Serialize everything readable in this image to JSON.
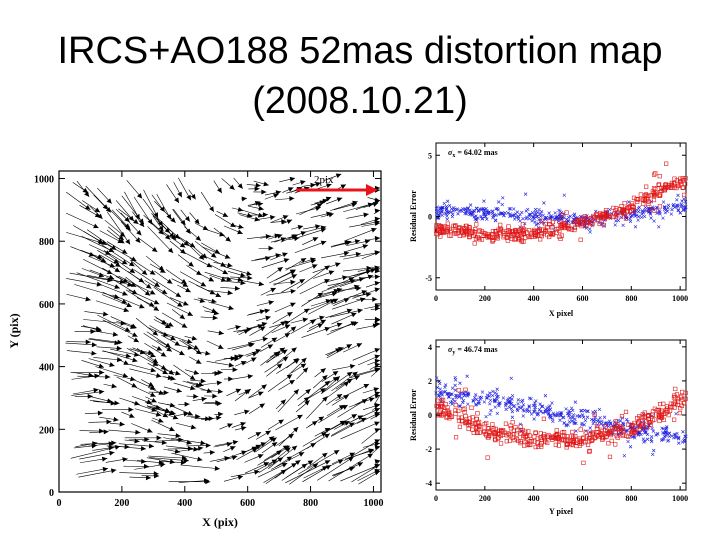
{
  "slide": {
    "title_line1": "IRCS+AO188 52mas distortion map",
    "title_line2": "(2008.10.21)"
  },
  "colors": {
    "arrow": "#000000",
    "scale_arrow": "#e8141c",
    "x_residual": "#2020e0",
    "y_residual": "#e01818"
  },
  "chart_data": [
    {
      "type": "quiver",
      "xlabel": "X (pix)",
      "ylabel": "Y (pix)",
      "xlim": [
        0,
        1024
      ],
      "ylim": [
        0,
        1024
      ],
      "xticks": [
        "0",
        "200",
        "400",
        "600",
        "800",
        "1000"
      ],
      "yticks": [
        "0",
        "200",
        "400",
        "600",
        "800",
        "1000"
      ],
      "scale_label": "2pix",
      "scale_length_pix": 2
    },
    {
      "type": "scatter",
      "annotation_symbol": "σ",
      "annotation_sub": "x",
      "annotation_value": " = 64.02 mas",
      "xlabel": "X pixel",
      "ylabel": "Residual Error",
      "xlim": [
        0,
        1024
      ],
      "ylim": [
        -6,
        6
      ],
      "xticks": [
        "0",
        "200",
        "400",
        "600",
        "800",
        "1000"
      ],
      "yticks": [
        "-5",
        "0",
        "5"
      ],
      "series": [
        {
          "marker": "x",
          "color": "#2020e0",
          "trend_x": [
            0,
            200,
            400,
            600,
            800,
            1000
          ],
          "trend_y": [
            0.4,
            0.3,
            0.0,
            -0.3,
            0.2,
            0.8
          ]
        },
        {
          "marker": "square",
          "color": "#e01818",
          "trend_x": [
            0,
            200,
            400,
            600,
            800,
            1000
          ],
          "trend_y": [
            -1.0,
            -1.5,
            -1.3,
            -0.5,
            0.8,
            3.0
          ]
        }
      ]
    },
    {
      "type": "scatter",
      "annotation_symbol": "σ",
      "annotation_sub": "y",
      "annotation_value": " = 46.74 mas",
      "xlabel": "Y pixel",
      "ylabel": "Residual Error",
      "xlim": [
        0,
        1024
      ],
      "ylim": [
        -4.4,
        4.4
      ],
      "xticks": [
        "0",
        "200",
        "400",
        "600",
        "800",
        "1000"
      ],
      "yticks": [
        "-4",
        "-2",
        "0",
        "2",
        "4"
      ],
      "series": [
        {
          "marker": "x",
          "color": "#2020e0",
          "trend_x": [
            0,
            200,
            400,
            600,
            800,
            1000
          ],
          "trend_y": [
            1.3,
            0.9,
            0.4,
            -0.2,
            -0.8,
            -1.3
          ]
        },
        {
          "marker": "square",
          "color": "#e01818",
          "trend_x": [
            0,
            200,
            400,
            600,
            800,
            1000
          ],
          "trend_y": [
            0.5,
            -0.8,
            -1.4,
            -1.4,
            -0.8,
            0.9
          ]
        }
      ]
    }
  ]
}
